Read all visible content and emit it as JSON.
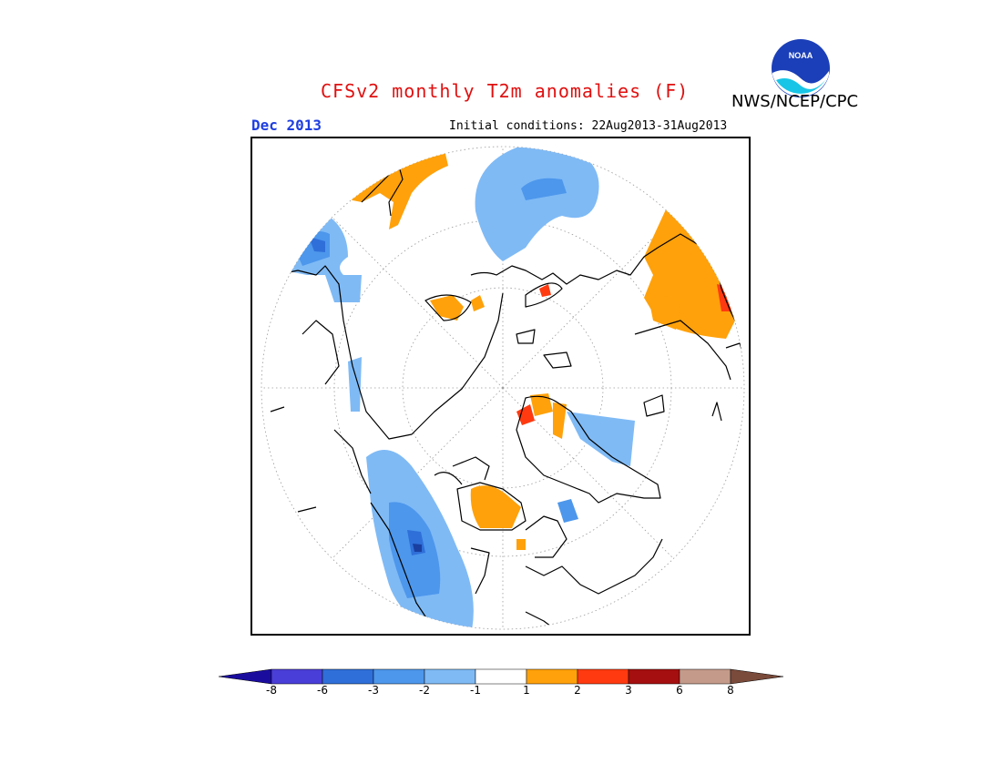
{
  "header": {
    "title": "CFSv2 monthly T2m anomalies (F)",
    "agency": "NWS/NCEP/CPC",
    "month": "Dec 2013",
    "initial_conditions": "Initial conditions: 22Aug2013-31Aug2013",
    "logo_text": "NOAA"
  },
  "map": {
    "projection": "north-polar-stereographic",
    "background": "#ffffff",
    "coastline_color": "#000000",
    "gridline_color": "#888888"
  },
  "colorbar": {
    "labels": [
      "-8",
      "-6",
      "-3",
      "-2",
      "-1",
      "1",
      "2",
      "3",
      "6",
      "8"
    ],
    "colors": [
      "#1a0d9e",
      "#4a3ed8",
      "#2f6fd9",
      "#4d97ec",
      "#7fbaf5",
      "#ffffff",
      "#ffa10a",
      "#ff3a10",
      "#a50f0f",
      "#c49a8a",
      "#7a4a3a"
    ]
  },
  "legend_colors": {
    "light_blue": "#7fbaf5",
    "mid_blue": "#4d97ec",
    "blue": "#2f6fd9",
    "dark_blue": "#1a3fa0",
    "orange": "#ffa10a",
    "red": "#ff3a10",
    "dark_red": "#a50f0f"
  }
}
